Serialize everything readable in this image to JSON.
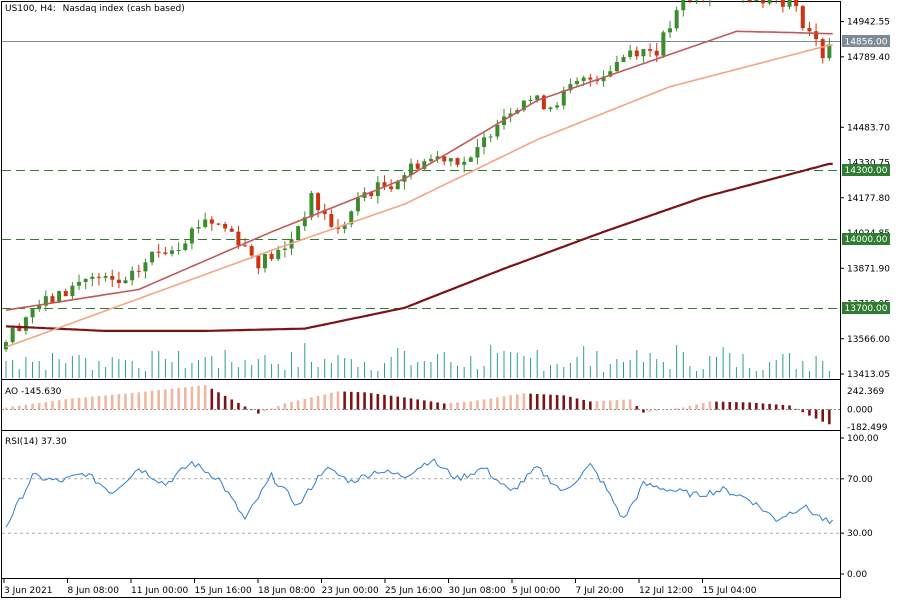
{
  "header": {
    "symbol": "US100, H4:",
    "description": "Nasdaq index (cash based)"
  },
  "colors": {
    "bull": "#3c8b2f",
    "bear": "#cc3311",
    "ma_fast": "#f4a582",
    "ma_mid": "#c0595a",
    "ma_slow": "#7a1416",
    "level_line": "#2e7d32",
    "level_box": "#2e7d32",
    "price_box_line": "#7c8a97",
    "volume": "#2a9d8f",
    "ao_up": "#f0b6a0",
    "ao_down": "#7a1416",
    "rsi": "#2f7fd0",
    "grid_dash": "#aaaaaa"
  },
  "price_axis": {
    "ticks": [
      "14942.55",
      "14789.40",
      "14483.70",
      "14177.80",
      "13871.90",
      "13566.00",
      "13413.05"
    ],
    "hidden_ticks": [
      "14330.75",
      "14024.85",
      "13719.05"
    ],
    "current_price": "14856.00",
    "levels": [
      "14300.00",
      "14000.00",
      "13700.00"
    ]
  },
  "ao_panel": {
    "label": "AO -145.630",
    "ticks": [
      "242.369",
      "0.000",
      "-182.499"
    ]
  },
  "rsi_panel": {
    "label": "RSI(14) 37.30",
    "ticks": [
      "100.00",
      "70.00",
      "30.00",
      "0.00"
    ]
  },
  "time_axis": {
    "labels": [
      "3 Jun 2021",
      "8 Jun 08:00",
      "11 Jun 00:00",
      "15 Jun 16:00",
      "18 Jun 08:00",
      "23 Jun 00:00",
      "25 Jun 16:00",
      "30 Jun 08:00",
      "5 Jul 00:00",
      "7 Jul 20:00",
      "12 Jul 12:00",
      "15 Jul 04:00"
    ]
  },
  "chart_data": {
    "type": "candlestick",
    "symbol": "US100",
    "timeframe": "H4",
    "bars": 125,
    "close_path": [
      [
        0,
        13560
      ],
      [
        4,
        13700
      ],
      [
        8,
        13750
      ],
      [
        12,
        13830
      ],
      [
        18,
        13800
      ],
      [
        22,
        13930
      ],
      [
        26,
        13980
      ],
      [
        30,
        14090
      ],
      [
        34,
        14030
      ],
      [
        38,
        13900
      ],
      [
        42,
        13950
      ],
      [
        46,
        14170
      ],
      [
        50,
        14030
      ],
      [
        54,
        14200
      ],
      [
        58,
        14240
      ],
      [
        62,
        14330
      ],
      [
        66,
        14360
      ],
      [
        70,
        14330
      ],
      [
        74,
        14520
      ],
      [
        78,
        14610
      ],
      [
        82,
        14580
      ],
      [
        86,
        14670
      ],
      [
        90,
        14720
      ],
      [
        94,
        14820
      ],
      [
        98,
        14820
      ],
      [
        102,
        15020
      ],
      [
        106,
        15060
      ],
      [
        110,
        15070
      ],
      [
        114,
        15050
      ],
      [
        118,
        15030
      ],
      [
        121,
        14900
      ],
      [
        123,
        14800
      ],
      [
        124,
        14856
      ]
    ],
    "ma_fast": [
      [
        0,
        13530
      ],
      [
        20,
        13740
      ],
      [
        40,
        13950
      ],
      [
        60,
        14150
      ],
      [
        80,
        14430
      ],
      [
        100,
        14660
      ],
      [
        124,
        14840
      ]
    ],
    "ma_mid": [
      [
        0,
        13690
      ],
      [
        20,
        13780
      ],
      [
        40,
        14030
      ],
      [
        60,
        14260
      ],
      [
        80,
        14600
      ],
      [
        100,
        14800
      ],
      [
        110,
        14900
      ],
      [
        118,
        14895
      ],
      [
        124,
        14890
      ]
    ],
    "ma_slow": [
      [
        0,
        13620
      ],
      [
        15,
        13600
      ],
      [
        30,
        13600
      ],
      [
        45,
        13610
      ],
      [
        60,
        13700
      ],
      [
        75,
        13870
      ],
      [
        90,
        14030
      ],
      [
        105,
        14180
      ],
      [
        124,
        14325
      ]
    ],
    "volume_scale": "relative",
    "ao": {
      "range": [
        -182.499,
        242.369
      ],
      "last": -145.63,
      "path": [
        [
          0,
          20
        ],
        [
          10,
          110
        ],
        [
          20,
          170
        ],
        [
          30,
          240
        ],
        [
          34,
          100
        ],
        [
          38,
          -40
        ],
        [
          42,
          60
        ],
        [
          50,
          180
        ],
        [
          54,
          170
        ],
        [
          60,
          120
        ],
        [
          66,
          60
        ],
        [
          70,
          80
        ],
        [
          78,
          160
        ],
        [
          84,
          140
        ],
        [
          88,
          80
        ],
        [
          94,
          100
        ],
        [
          96,
          -30
        ],
        [
          102,
          20
        ],
        [
          106,
          80
        ],
        [
          112,
          70
        ],
        [
          118,
          40
        ],
        [
          121,
          -60
        ],
        [
          123,
          -120
        ],
        [
          124,
          -145.63
        ]
      ]
    },
    "rsi": {
      "period": 14,
      "last": 37.3,
      "levels": [
        70,
        30
      ],
      "path": [
        [
          0,
          35
        ],
        [
          4,
          72
        ],
        [
          8,
          68
        ],
        [
          12,
          74
        ],
        [
          16,
          60
        ],
        [
          20,
          78
        ],
        [
          24,
          66
        ],
        [
          28,
          82
        ],
        [
          32,
          70
        ],
        [
          36,
          40
        ],
        [
          40,
          72
        ],
        [
          44,
          50
        ],
        [
          48,
          78
        ],
        [
          52,
          68
        ],
        [
          56,
          76
        ],
        [
          60,
          72
        ],
        [
          64,
          84
        ],
        [
          68,
          70
        ],
        [
          72,
          78
        ],
        [
          76,
          60
        ],
        [
          80,
          78
        ],
        [
          84,
          60
        ],
        [
          88,
          80
        ],
        [
          90,
          66
        ],
        [
          93,
          40
        ],
        [
          96,
          66
        ],
        [
          100,
          62
        ],
        [
          104,
          58
        ],
        [
          108,
          62
        ],
        [
          112,
          55
        ],
        [
          116,
          40
        ],
        [
          120,
          50
        ],
        [
          124,
          37.3
        ]
      ]
    },
    "y_range": [
      13413.05,
      15010
    ]
  }
}
